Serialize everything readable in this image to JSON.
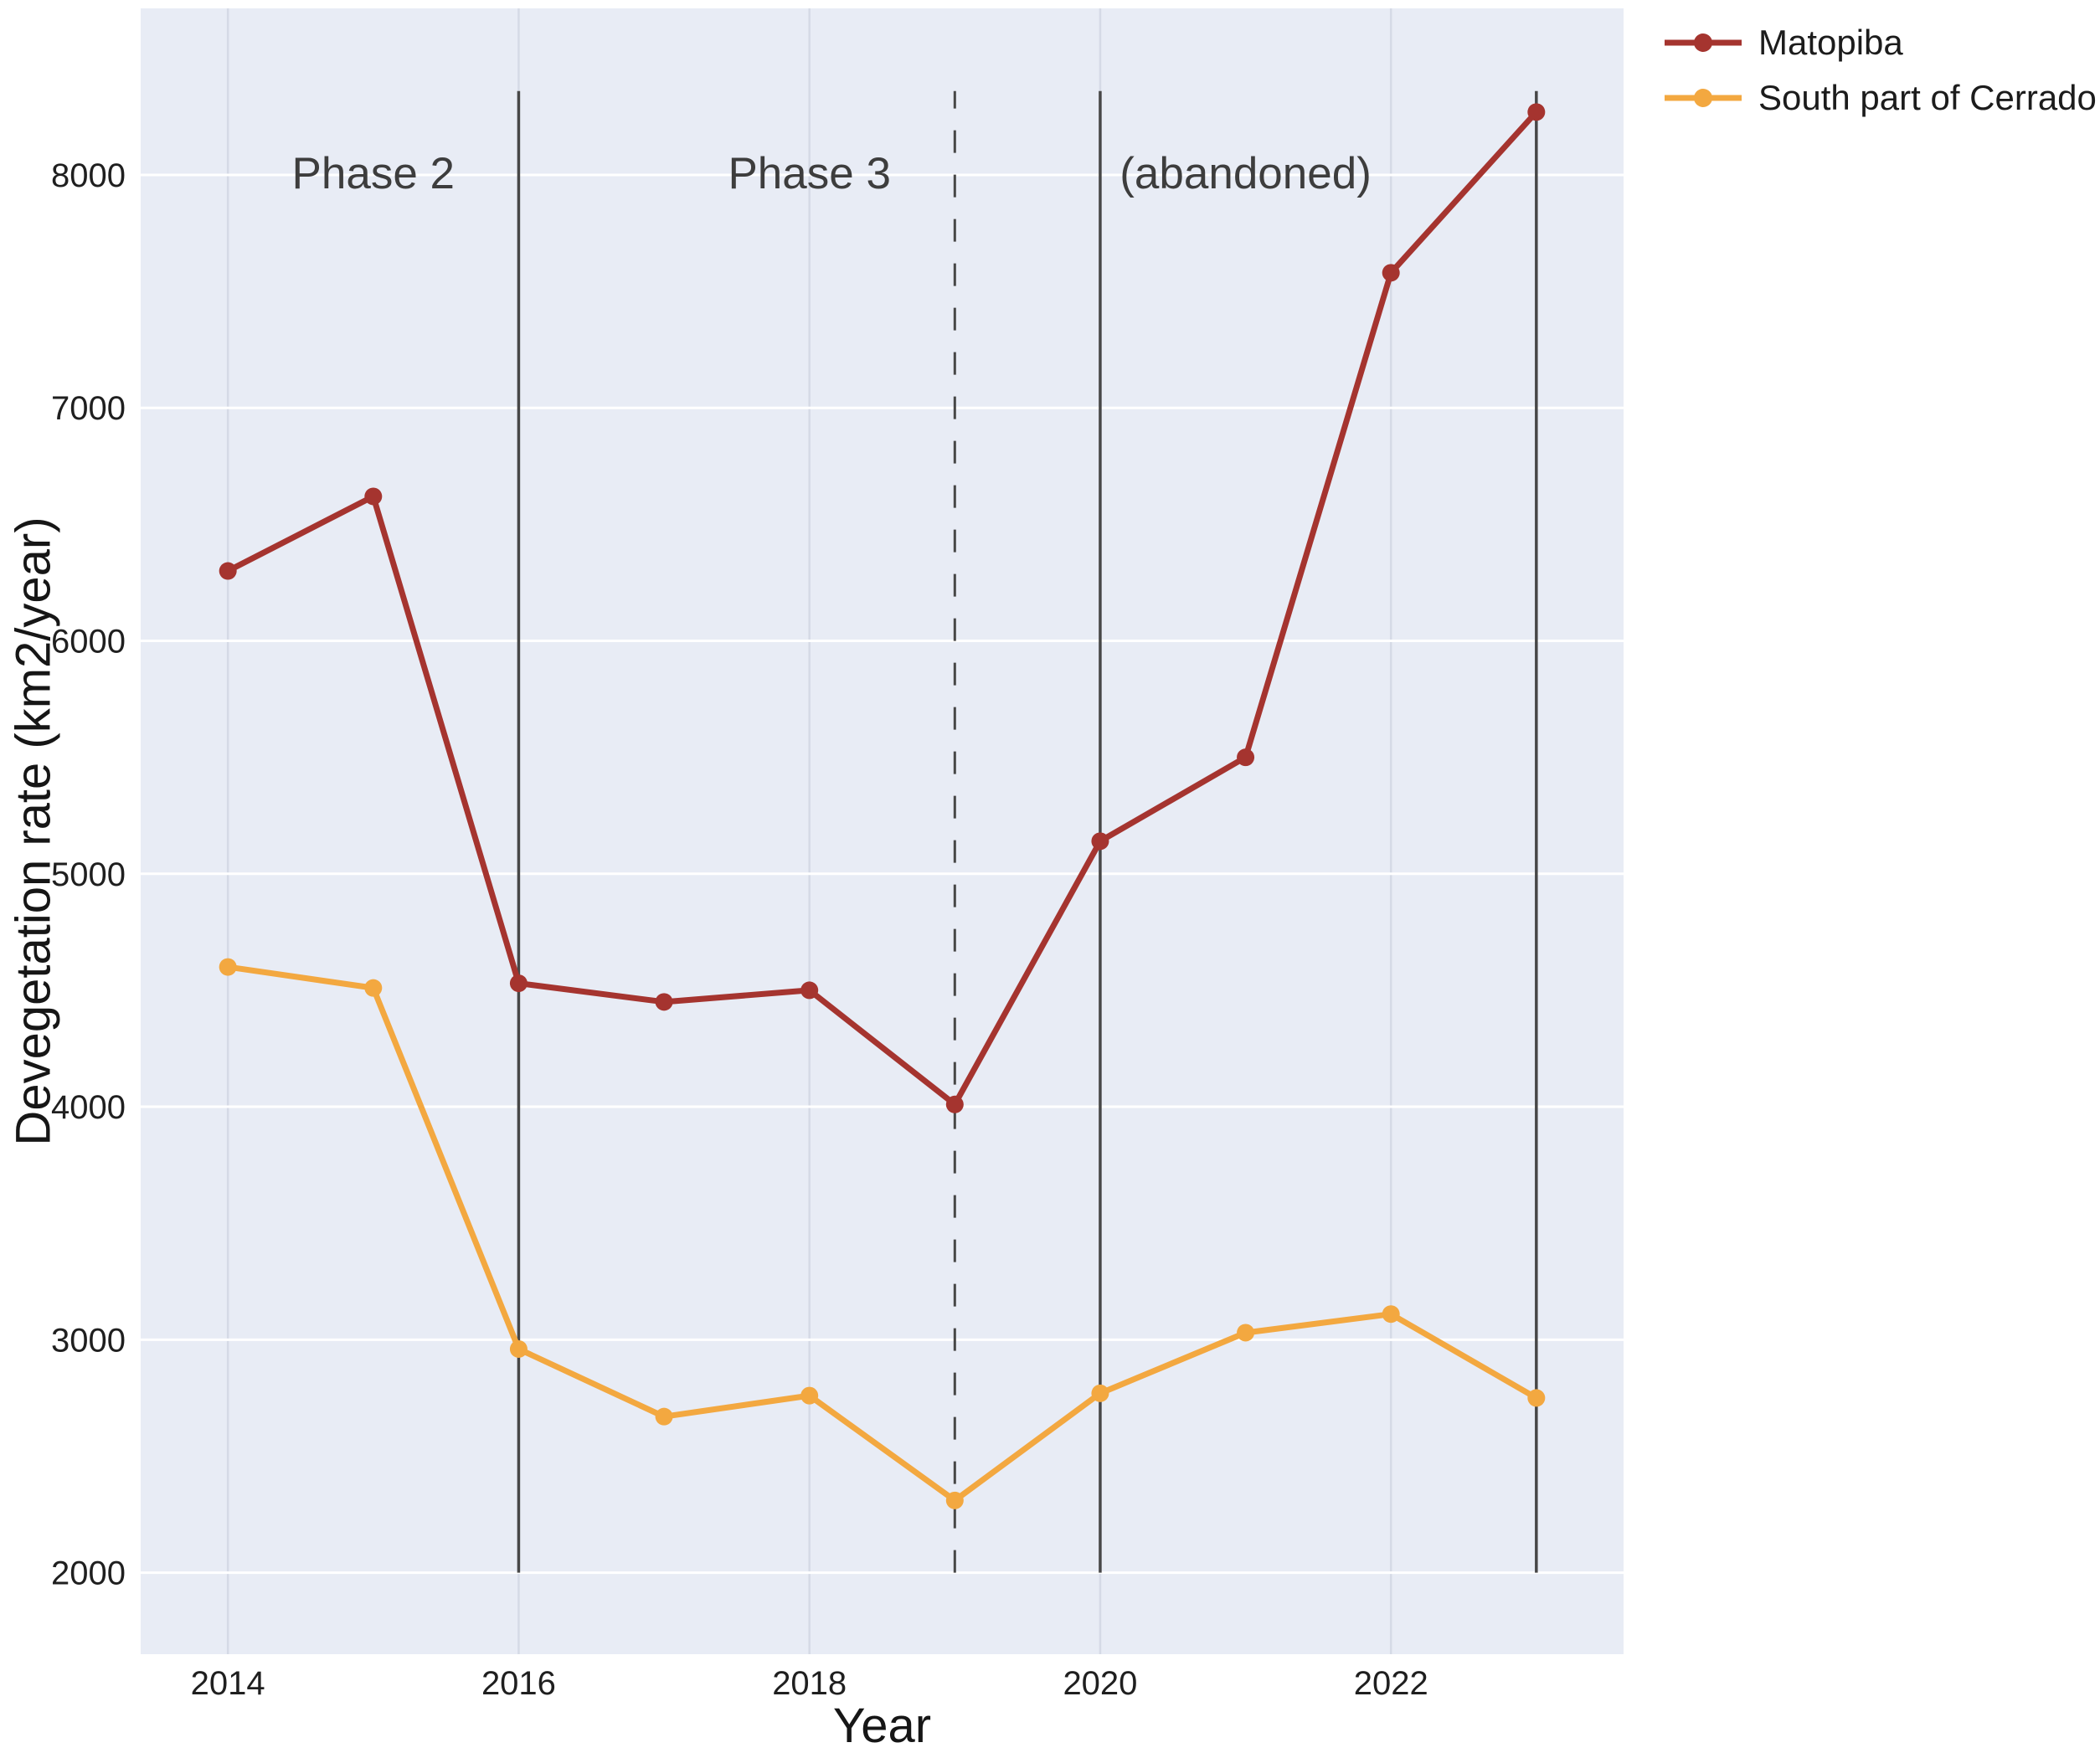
{
  "figure": {
    "plot_bg": "#e8ecf5",
    "grid_color_h": "#ffffff",
    "grid_color_v": "#d5dae6",
    "vline_color": "#474747",
    "tick_color": "#1f1f1f",
    "annotation_color": "#3d3d3d"
  },
  "chart_data": {
    "type": "line",
    "title": "",
    "xlabel": "Year",
    "ylabel": "Devegetation rate (km2/year)",
    "x": [
      2014,
      2015,
      2016,
      2017,
      2018,
      2019,
      2020,
      2021,
      2022,
      2023
    ],
    "series": [
      {
        "name": "Matopiba",
        "color": "#a5342f",
        "values": [
          6300,
          6620,
          4530,
          4450,
          4500,
          4010,
          5140,
          5500,
          7580,
          8270
        ]
      },
      {
        "name": "South part of Cerrado",
        "color": "#f3a840",
        "values": [
          4600,
          4510,
          2960,
          2670,
          2760,
          2310,
          2770,
          3030,
          3110,
          2750
        ]
      }
    ],
    "xlim": [
      2013.4,
      2023.6
    ],
    "ylim": [
      1650,
      8715
    ],
    "xticks": [
      2014,
      2016,
      2018,
      2020,
      2022
    ],
    "yticks": [
      2000,
      3000,
      4000,
      5000,
      6000,
      7000,
      8000
    ],
    "grid": true,
    "legend_position": "top-right-outside",
    "vlines": [
      {
        "x": 2016,
        "style": "solid",
        "from": 2000,
        "to": 8360
      },
      {
        "x": 2019,
        "style": "dashed",
        "from": 2000,
        "to": 8360
      },
      {
        "x": 2020,
        "style": "solid",
        "from": 2000,
        "to": 8360
      },
      {
        "x": 2023,
        "style": "solid",
        "from": 2000,
        "to": 8360
      }
    ],
    "annotations": [
      {
        "x": 2015,
        "y": 8010,
        "text": "Phase 2"
      },
      {
        "x": 2018,
        "y": 8010,
        "text": "Phase 3"
      },
      {
        "x": 2021,
        "y": 8010,
        "text": "(abandoned)"
      }
    ]
  }
}
